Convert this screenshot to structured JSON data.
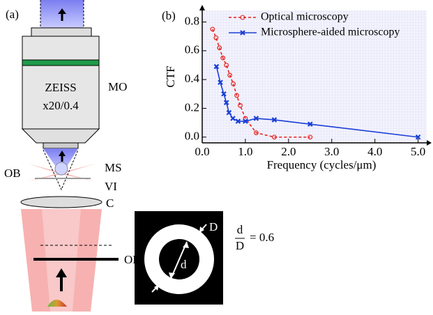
{
  "diagram": {
    "panel_label": "(a)",
    "objective_brand": "ZEISS",
    "objective_spec": "x20/0.4",
    "labels": {
      "mo": "MO",
      "ms": "MS",
      "ob": "OB",
      "vi": "VI",
      "c": "C",
      "od": "OD"
    },
    "mask": {
      "outer": "D",
      "inner": "d"
    },
    "ratio": {
      "numerator": "d",
      "denominator": "D",
      "rest": "= 0.6"
    }
  },
  "chart_data": {
    "type": "line",
    "panel_label": "(b)",
    "x_label": "Frequency (cycles/μm)",
    "y_label": "CTF",
    "xlim": [
      0,
      5.2
    ],
    "ylim": [
      -0.04,
      0.88
    ],
    "xticks": [
      {
        "value": 0,
        "label": "0.0"
      },
      {
        "value": 1,
        "label": "1.0"
      },
      {
        "value": 2,
        "label": "2.0"
      },
      {
        "value": 3,
        "label": "3.0"
      },
      {
        "value": 4,
        "label": "4.0"
      },
      {
        "value": 5,
        "label": "5.0"
      }
    ],
    "yticks": [
      {
        "value": 0,
        "label": "0.0"
      },
      {
        "value": 0.2,
        "label": "0.2"
      },
      {
        "value": 0.4,
        "label": "0.4"
      },
      {
        "value": 0.6,
        "label": "0.6"
      },
      {
        "value": 0.8,
        "label": "0.8"
      }
    ],
    "series": [
      {
        "name": "Optical microscopy",
        "color": "#e8211c",
        "x": [
          0.24,
          0.32,
          0.4,
          0.48,
          0.56,
          0.64,
          0.72,
          0.8,
          0.88,
          1.0,
          1.25,
          1.67,
          2.5
        ],
        "values": [
          0.75,
          0.69,
          0.62,
          0.55,
          0.5,
          0.43,
          0.37,
          0.29,
          0.22,
          0.13,
          0.03,
          0,
          0
        ]
      },
      {
        "name": "Microsphere-aided microscopy",
        "color": "#1a3fd6",
        "x": [
          0.33,
          0.42,
          0.5,
          0.56,
          0.62,
          0.71,
          0.83,
          1.0,
          1.25,
          1.67,
          2.5,
          5.0
        ],
        "values": [
          0.49,
          0.38,
          0.3,
          0.24,
          0.17,
          0.13,
          0.11,
          0.11,
          0.13,
          0.12,
          0.09,
          0
        ]
      }
    ]
  }
}
